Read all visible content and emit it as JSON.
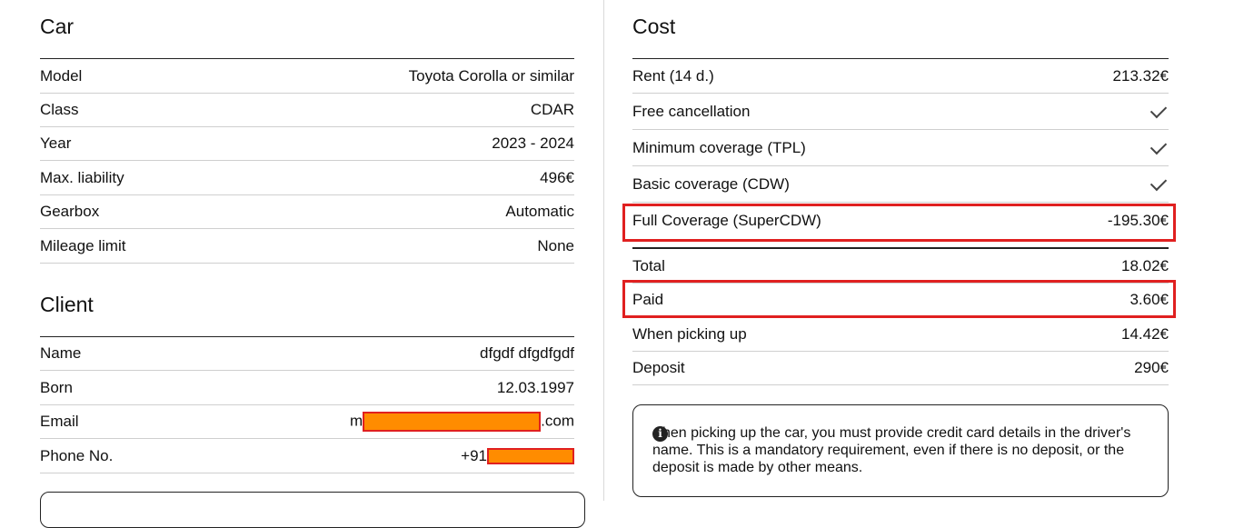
{
  "car": {
    "title": "Car",
    "rows": [
      {
        "label": "Model",
        "value": "Toyota Corolla or similar"
      },
      {
        "label": "Class",
        "value": "CDAR"
      },
      {
        "label": "Year",
        "value": "2023 - 2024"
      },
      {
        "label": "Max. liability",
        "value": "496€"
      },
      {
        "label": "Gearbox",
        "value": "Automatic"
      },
      {
        "label": "Mileage limit",
        "value": "None"
      }
    ]
  },
  "client": {
    "title": "Client",
    "name_label": "Name",
    "name_value": "dfgdf dfgdfgdf",
    "born_label": "Born",
    "born_value": "12.03.1997",
    "email_label": "Email",
    "email_prefix": "m",
    "email_suffix": ".com",
    "phone_label": "Phone No.",
    "phone_prefix": "+91"
  },
  "cost": {
    "title": "Cost",
    "rent_label": "Rent (14 d.)",
    "rent_value": "213.32€",
    "free_cancellation_label": "Free cancellation",
    "tpl_label": "Minimum coverage (TPL)",
    "cdw_label": "Basic coverage (CDW)",
    "full_label": "Full Coverage (SuperCDW)",
    "full_value": "-195.30€",
    "total_label": "Total",
    "total_value": "18.02€",
    "paid_label": "Paid",
    "paid_value": "3.60€",
    "pickup_label": "When picking up",
    "pickup_value": "14.42€",
    "deposit_label": "Deposit",
    "deposit_value": "290€"
  },
  "info": {
    "text": "hen picking up the car, you must provide credit card details in the driver's name. This is a mandatory requirement, even if there is no deposit, or the deposit is made by other means."
  },
  "icons": {
    "check": "check-icon",
    "info": "info-icon"
  },
  "colors": {
    "highlight": "#e02020",
    "redaction": "#ff8c00"
  }
}
